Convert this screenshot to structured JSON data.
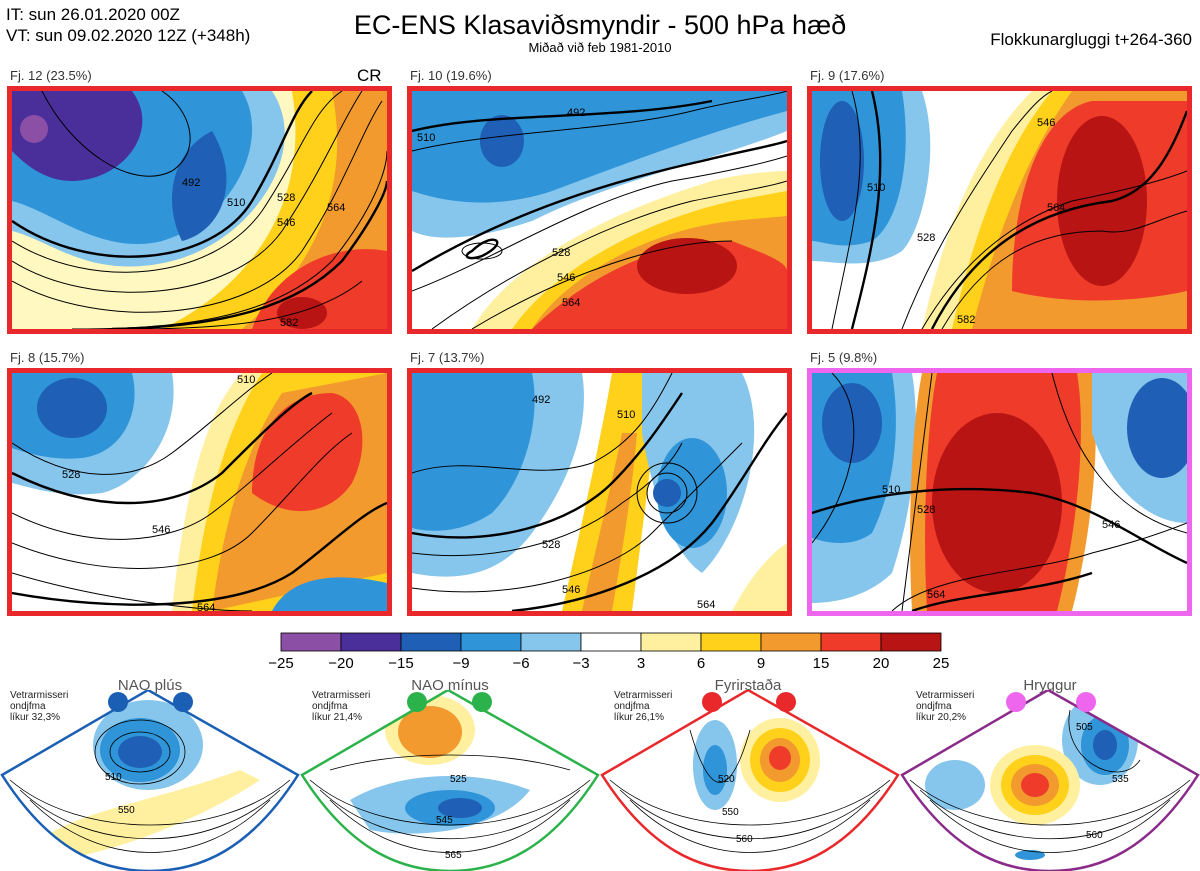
{
  "header": {
    "it_line": "IT: sun 26.01.2020 00Z",
    "vt_line": "VT: sun 09.02.2020 12Z  (+348h)",
    "title": "EC-ENS Klasaviðsmyndir - 500 hPa hæð",
    "subtitle": "Miðað við feb 1981-2010",
    "window": "Flokkunargluggi t+264-360"
  },
  "cr_label": "CR",
  "panels": [
    {
      "label": "Fj. 12 (23.5%)",
      "border_color": "#e8282a",
      "contours": [
        "510",
        "492",
        "528",
        "546",
        "564",
        "582"
      ]
    },
    {
      "label": "Fj. 10 (19.6%)",
      "border_color": "#e8282a",
      "contours": [
        "492",
        "510",
        "528",
        "546",
        "564"
      ]
    },
    {
      "label": "Fj. 9 (17.6%)",
      "border_color": "#e8282a",
      "contours": [
        "510",
        "528",
        "546",
        "564",
        "582"
      ]
    },
    {
      "label": "Fj. 8 (15.7%)",
      "border_color": "#e8282a",
      "contours": [
        "510",
        "528",
        "546",
        "564"
      ]
    },
    {
      "label": "Fj. 7 (13.7%)",
      "border_color": "#e8282a",
      "contours": [
        "492",
        "510",
        "528",
        "546",
        "564"
      ]
    },
    {
      "label": "Fj. 5 (9.8%)",
      "border_color": "#ee66ee",
      "contours": [
        "510",
        "528",
        "546",
        "564"
      ]
    }
  ],
  "colorbar": {
    "ticks": [
      "−25",
      "−20",
      "−15",
      "−9",
      "−6",
      "−3",
      "3",
      "6",
      "9",
      "15",
      "20",
      "25"
    ],
    "colors": [
      "#8b4fa6",
      "#4a2f9a",
      "#1f5fb5",
      "#2f95d8",
      "#86c5ec",
      "#ffffff",
      "#fff0a0",
      "#ffd11a",
      "#f39a2e",
      "#ee3b2a",
      "#b81414"
    ]
  },
  "regimes": [
    {
      "name": "NAO plús",
      "dot_color": "#1a5fb4",
      "arc_color": "#1a5fb4",
      "note": [
        "Vetrarmisseri",
        "ondjfma",
        "líkur 32,3%"
      ],
      "contours": [
        "510",
        "550"
      ]
    },
    {
      "name": "NAO mínus",
      "dot_color": "#2cb24a",
      "arc_color": "#2cb24a",
      "note": [
        "Vetrarmisseri",
        "ondjfma",
        "líkur 21,4%"
      ],
      "contours": [
        "525",
        "545",
        "565"
      ]
    },
    {
      "name": "Fyrirstaða",
      "dot_color": "#e8282a",
      "arc_color": "#e8282a",
      "note": [
        "Vetrarmisseri",
        "ondjfma",
        "líkur 26,1%"
      ],
      "contours": [
        "520",
        "550",
        "560"
      ]
    },
    {
      "name": "Hryggur",
      "dot_color": "#ee66ee",
      "arc_color": "#8a2a8a",
      "note": [
        "Vetrarmisseri",
        "ondjfma",
        "líkur 20,2%"
      ],
      "contours": [
        "505",
        "535",
        "560"
      ]
    }
  ]
}
